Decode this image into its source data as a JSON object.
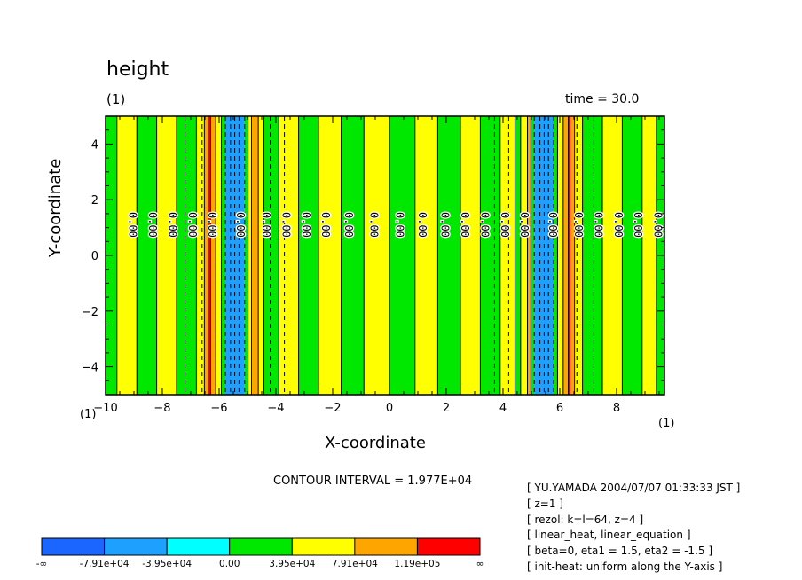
{
  "chart_data": {
    "type": "heatmap",
    "title": "height",
    "panel_label_left": "(1)",
    "panel_label_right": "time = 30.0",
    "xlabel": "X-coordinate",
    "ylabel": "Y-coordinate",
    "x_unit_left": "(1)",
    "x_unit_right": "(1)",
    "xlim": [
      -10,
      9.6875
    ],
    "ylim": [
      -5,
      5
    ],
    "xticks": [
      -10,
      -8,
      -6,
      -4,
      -2,
      0,
      2,
      4,
      6,
      8
    ],
    "yticks": [
      -4,
      -2,
      0,
      2,
      4
    ],
    "contour_interval_label": "CONTOUR INTERVAL = 1.977E+04",
    "contour_label_text": "0.00",
    "contour_label_x": [
      -9.06,
      -8.36,
      -7.66,
      -6.96,
      -6.26,
      -5.26,
      -4.36,
      -3.66,
      -2.96,
      -2.26,
      -1.46,
      -0.56,
      0.34,
      1.14,
      1.94,
      2.64,
      3.34,
      4.04,
      4.74,
      5.74,
      6.64,
      7.34,
      8.04,
      8.74,
      9.44
    ],
    "contour_label_y": 1.1,
    "bands": [
      {
        "x0": -10.0,
        "x1": -9.6,
        "cat": 3
      },
      {
        "x0": -9.6,
        "x1": -8.9,
        "cat": 4
      },
      {
        "x0": -8.9,
        "x1": -8.2,
        "cat": 3
      },
      {
        "x0": -8.2,
        "x1": -7.5,
        "cat": 4
      },
      {
        "x0": -7.5,
        "x1": -6.8,
        "cat": 3
      },
      {
        "x0": -6.8,
        "x1": -6.52,
        "cat": 4
      },
      {
        "x0": -6.52,
        "x1": -6.38,
        "cat": 5
      },
      {
        "x0": -6.38,
        "x1": -6.3,
        "cat": 6
      },
      {
        "x0": -6.3,
        "x1": -6.12,
        "cat": 5
      },
      {
        "x0": -6.12,
        "x1": -5.92,
        "cat": 4
      },
      {
        "x0": -5.92,
        "x1": -5.78,
        "cat": 3
      },
      {
        "x0": -5.78,
        "x1": -5.1,
        "cat": 1
      },
      {
        "x0": -5.1,
        "x1": -4.98,
        "cat": 3
      },
      {
        "x0": -4.98,
        "x1": -4.86,
        "cat": 4
      },
      {
        "x0": -4.86,
        "x1": -4.62,
        "cat": 5
      },
      {
        "x0": -4.62,
        "x1": -4.42,
        "cat": 4
      },
      {
        "x0": -4.42,
        "x1": -3.9,
        "cat": 3
      },
      {
        "x0": -3.9,
        "x1": -3.2,
        "cat": 4
      },
      {
        "x0": -3.2,
        "x1": -2.5,
        "cat": 3
      },
      {
        "x0": -2.5,
        "x1": -1.7,
        "cat": 4
      },
      {
        "x0": -1.7,
        "x1": -0.9,
        "cat": 3
      },
      {
        "x0": -0.9,
        "x1": 0.0,
        "cat": 4
      },
      {
        "x0": 0.0,
        "x1": 0.9,
        "cat": 3
      },
      {
        "x0": 0.9,
        "x1": 1.7,
        "cat": 4
      },
      {
        "x0": 1.7,
        "x1": 2.5,
        "cat": 3
      },
      {
        "x0": 2.5,
        "x1": 3.2,
        "cat": 4
      },
      {
        "x0": 3.2,
        "x1": 3.9,
        "cat": 3
      },
      {
        "x0": 3.9,
        "x1": 4.42,
        "cat": 4
      },
      {
        "x0": 4.42,
        "x1": 4.62,
        "cat": 3
      },
      {
        "x0": 4.62,
        "x1": 4.86,
        "cat": 4
      },
      {
        "x0": 4.86,
        "x1": 4.98,
        "cat": 5
      },
      {
        "x0": 4.98,
        "x1": 5.1,
        "cat": 3
      },
      {
        "x0": 5.1,
        "x1": 5.78,
        "cat": 1
      },
      {
        "x0": 5.78,
        "x1": 5.92,
        "cat": 3
      },
      {
        "x0": 5.92,
        "x1": 6.12,
        "cat": 4
      },
      {
        "x0": 6.12,
        "x1": 6.3,
        "cat": 5
      },
      {
        "x0": 6.3,
        "x1": 6.38,
        "cat": 6
      },
      {
        "x0": 6.38,
        "x1": 6.52,
        "cat": 5
      },
      {
        "x0": 6.52,
        "x1": 6.8,
        "cat": 4
      },
      {
        "x0": 6.8,
        "x1": 7.5,
        "cat": 3
      },
      {
        "x0": 7.5,
        "x1": 8.2,
        "cat": 4
      },
      {
        "x0": 8.2,
        "x1": 8.9,
        "cat": 3
      },
      {
        "x0": 8.9,
        "x1": 9.4,
        "cat": 4
      },
      {
        "x0": 9.4,
        "x1": 9.6875,
        "cat": 3
      }
    ],
    "solid_contours": [
      -9.6,
      -8.9,
      -8.2,
      -7.5,
      -6.8,
      -6.52,
      -6.3,
      -6.12,
      -5.92,
      -4.98,
      -4.86,
      -4.62,
      -4.42,
      -3.9,
      -3.2,
      -2.5,
      -1.7,
      -0.9,
      0.0,
      0.9,
      1.7,
      2.5,
      3.2,
      3.9,
      4.42,
      4.62,
      4.86,
      4.98,
      5.92,
      6.12,
      6.3,
      6.52,
      6.8,
      7.5,
      8.2,
      8.9,
      9.4
    ],
    "dashed_contours": [
      -7.2,
      -6.6,
      -5.78,
      -5.6,
      -5.45,
      -5.3,
      -5.1,
      -4.2,
      -3.7,
      3.7,
      4.2,
      5.1,
      5.3,
      5.45,
      5.6,
      5.78,
      6.6,
      7.2
    ],
    "colorbar": {
      "colors": [
        "#1a66ff",
        "#1ea0ff",
        "#00ffff",
        "#00e800",
        "#ffff00",
        "#ffa500",
        "#ff0000"
      ],
      "labels": [
        "-∞",
        "-7.91e+04",
        "-3.95e+04",
        "0.00",
        "3.95e+04",
        "7.91e+04",
        "1.19e+05",
        "∞"
      ]
    },
    "colors": {
      "blue": "#1a66ff",
      "mid_blue": "#1ea0ff",
      "cyan": "#00ffff",
      "green": "#00e800",
      "yellow": "#ffff00",
      "orange": "#ffa500",
      "red": "#ff0000"
    }
  },
  "info_lines": [
    "[ YU.YAMADA 2004/07/07 01:33:33 JST ]",
    "[ z=1 ]",
    "[ rezol: k=l=64, z=4 ]",
    "[ linear_heat, linear_equation ]",
    "[ beta=0, eta1 = 1.5, eta2 = -1.5 ]",
    "[ init-heat: uniform along the Y-axis ]"
  ]
}
